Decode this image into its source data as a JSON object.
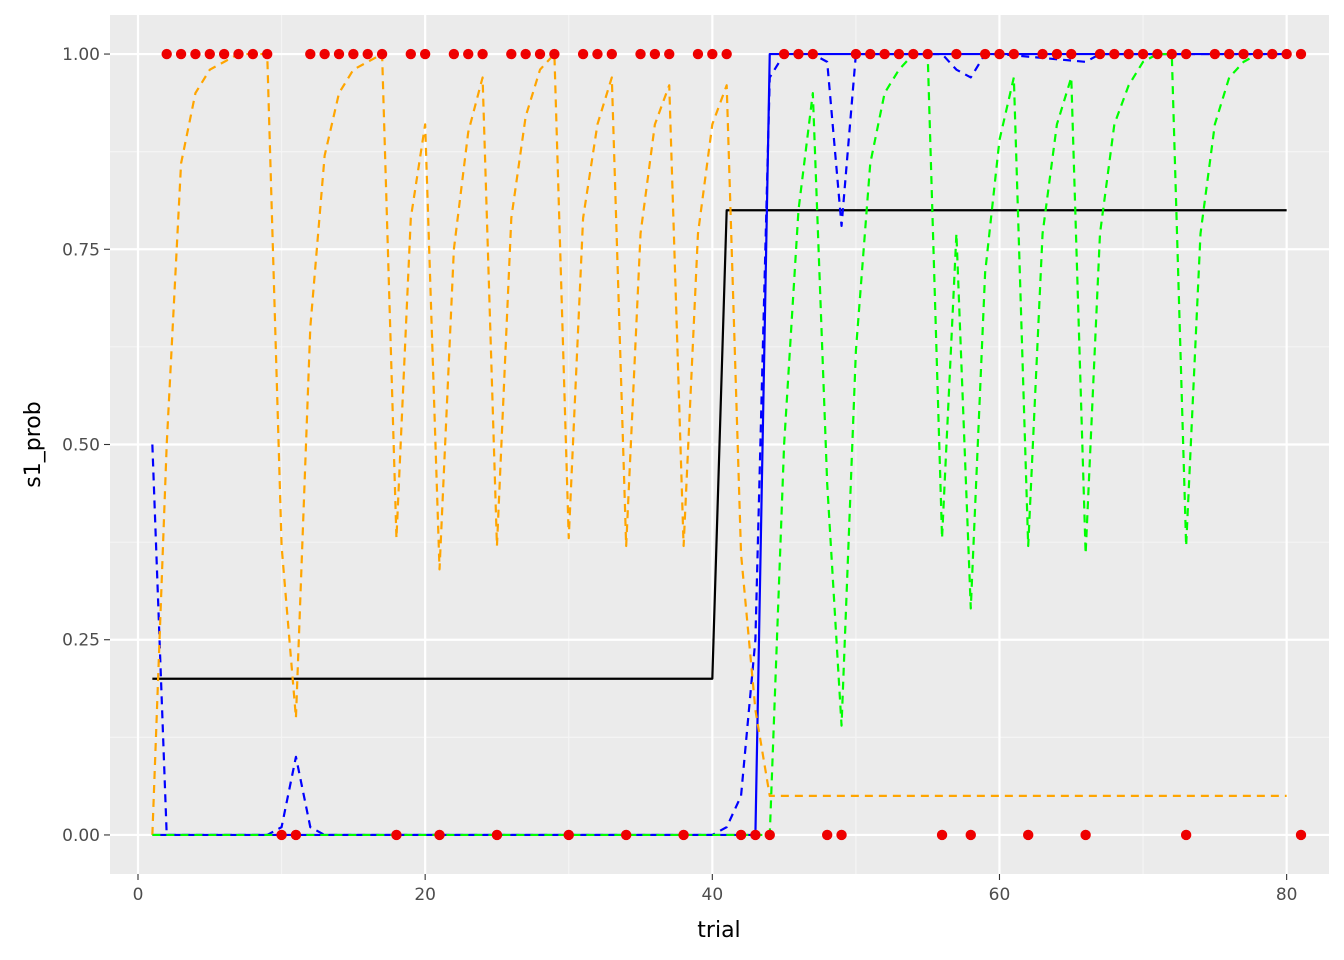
{
  "chart_data": {
    "type": "line",
    "title": "",
    "xlabel": "trial",
    "ylabel": "s1_prob",
    "xlim": [
      -1.95,
      82.95
    ],
    "ylim": [
      -0.05,
      1.05
    ],
    "x_ticks": [
      0,
      20,
      40,
      60,
      80
    ],
    "x_tick_labels": [
      "0",
      "20",
      "40",
      "60",
      "80"
    ],
    "y_ticks": [
      0,
      0.25,
      0.5,
      0.75,
      1
    ],
    "y_tick_labels": [
      "0.00",
      "0.25",
      "0.50",
      "0.75",
      "1.00"
    ],
    "grid": true,
    "legend": "none",
    "colors": {
      "panel_background": "#ebebeb",
      "grid_major": "#ffffff",
      "grid_minor": "#f5f5f5",
      "true_prob": "#000000",
      "blue_series": "#0000ff",
      "orange_series": "#ffa500",
      "green_series": "#00ff00",
      "points": "#ee0000"
    },
    "series": [
      {
        "style": "solid",
        "color": "#000000",
        "x": [
          1,
          40,
          41,
          80
        ],
        "y": [
          0.2,
          0.2,
          0.8,
          0.8
        ]
      },
      {
        "style": "solid",
        "color": "#0000ff",
        "x": [
          1,
          43,
          44,
          80
        ],
        "y": [
          0,
          0,
          1,
          1
        ]
      },
      {
        "style": "dashed",
        "color": "#0000ff",
        "x": [
          1,
          2,
          3,
          9,
          10,
          11,
          12,
          13,
          40,
          41,
          42,
          43,
          44,
          45,
          47,
          48,
          49,
          50,
          51,
          56,
          57,
          58,
          59,
          60,
          66,
          67,
          80
        ],
        "y": [
          0.5,
          0,
          0,
          0,
          0.01,
          0.1,
          0.01,
          0,
          0,
          0.01,
          0.05,
          0.25,
          0.97,
          1,
          1,
          0.99,
          0.78,
          1,
          1,
          1,
          0.98,
          0.97,
          1,
          1,
          0.99,
          1,
          1
        ]
      },
      {
        "style": "dashed",
        "color": "#ffa500",
        "x": [
          1,
          2,
          3,
          4,
          5,
          6,
          7,
          8,
          9,
          10,
          11,
          12,
          13,
          14,
          15,
          16,
          17,
          18,
          19,
          20,
          21,
          22,
          23,
          24,
          25,
          26,
          27,
          28,
          29,
          30,
          31,
          32,
          33,
          34,
          35,
          36,
          37,
          38,
          39,
          40,
          41,
          42,
          43,
          44,
          80
        ],
        "y": [
          0,
          0.5,
          0.86,
          0.95,
          0.98,
          0.99,
          1,
          1,
          1,
          0.37,
          0.15,
          0.65,
          0.87,
          0.95,
          0.98,
          0.99,
          1,
          0.38,
          0.79,
          0.91,
          0.34,
          0.75,
          0.9,
          0.97,
          0.37,
          0.79,
          0.92,
          0.98,
          1,
          0.38,
          0.79,
          0.91,
          0.97,
          0.37,
          0.77,
          0.91,
          0.96,
          0.37,
          0.77,
          0.91,
          0.96,
          0.36,
          0.16,
          0.05,
          0.05
        ]
      },
      {
        "style": "dashed",
        "color": "#00ff00",
        "x": [
          1,
          43,
          44,
          45,
          46,
          47,
          48,
          49,
          50,
          51,
          52,
          53,
          54,
          55,
          56,
          57,
          58,
          59,
          60,
          61,
          62,
          63,
          64,
          65,
          66,
          67,
          68,
          69,
          70,
          71,
          72,
          73,
          74,
          75,
          76,
          77,
          78,
          79,
          80
        ],
        "y": [
          0,
          0,
          0,
          0.5,
          0.8,
          0.95,
          0.45,
          0.14,
          0.62,
          0.86,
          0.95,
          0.98,
          1,
          1,
          0.38,
          0.77,
          0.29,
          0.72,
          0.89,
          0.97,
          0.37,
          0.77,
          0.91,
          0.97,
          0.36,
          0.77,
          0.91,
          0.96,
          0.99,
          1,
          1,
          0.37,
          0.77,
          0.91,
          0.97,
          0.99,
          1,
          1,
          1
        ]
      }
    ],
    "points": {
      "color": "#ee0000",
      "ones_x": [
        2,
        3,
        4,
        5,
        6,
        7,
        8,
        9,
        12,
        13,
        14,
        15,
        16,
        17,
        19,
        20,
        22,
        23,
        24,
        26,
        27,
        28,
        29,
        31,
        32,
        33,
        35,
        36,
        37,
        39,
        40,
        41,
        45,
        46,
        47,
        50,
        51,
        52,
        53,
        54,
        55,
        57,
        59,
        60,
        61,
        63,
        64,
        65,
        67,
        68,
        69,
        70,
        71,
        72,
        73,
        75,
        76,
        77,
        78,
        79,
        80,
        81
      ],
      "zeros_x": [
        10,
        11,
        18,
        21,
        25,
        30,
        34,
        38,
        42,
        43,
        44,
        48,
        49,
        56,
        58,
        62,
        66,
        73,
        81
      ]
    }
  }
}
